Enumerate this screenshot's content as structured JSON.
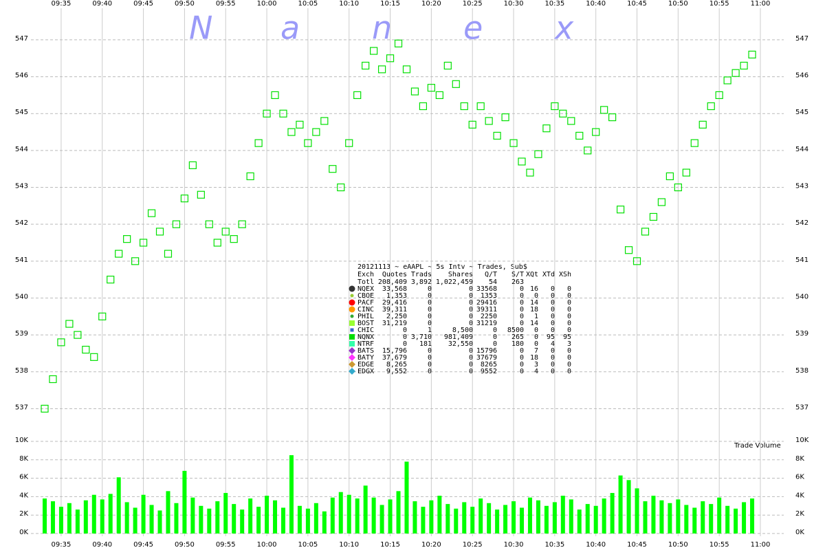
{
  "chart_data": [
    {
      "type": "scatter",
      "x": [
        "09:33",
        "09:34",
        "09:35",
        "09:36",
        "09:37",
        "09:38",
        "09:39",
        "09:40",
        "09:41",
        "09:42",
        "09:43",
        "09:44",
        "09:45",
        "09:46",
        "09:47",
        "09:48",
        "09:49",
        "09:50",
        "09:51",
        "09:52",
        "09:53",
        "09:54",
        "09:55",
        "09:56",
        "09:57",
        "09:58",
        "09:59",
        "10:00",
        "10:01",
        "10:02",
        "10:03",
        "10:04",
        "10:05",
        "10:06",
        "10:07",
        "10:08",
        "10:09",
        "10:10",
        "10:11",
        "10:12",
        "10:13",
        "10:14",
        "10:15",
        "10:16",
        "10:17",
        "10:18",
        "10:19",
        "10:20",
        "10:21",
        "10:22",
        "10:23",
        "10:24",
        "10:25",
        "10:26",
        "10:27",
        "10:28",
        "10:29",
        "10:30",
        "10:31",
        "10:32",
        "10:33",
        "10:34",
        "10:35",
        "10:36",
        "10:37",
        "10:38",
        "10:39",
        "10:40",
        "10:41",
        "10:42",
        "10:43",
        "10:44",
        "10:45",
        "10:46",
        "10:47",
        "10:48",
        "10:49",
        "10:50",
        "10:51",
        "10:52",
        "10:53",
        "10:54",
        "10:55",
        "10:56",
        "10:57",
        "10:58",
        "10:59"
      ],
      "values": [
        537.0,
        537.8,
        538.8,
        539.3,
        539.0,
        538.6,
        538.4,
        539.5,
        540.5,
        541.2,
        541.6,
        541.0,
        541.5,
        542.3,
        541.8,
        541.2,
        542.0,
        542.7,
        543.6,
        542.8,
        542.0,
        541.5,
        541.8,
        541.6,
        542.0,
        543.3,
        544.2,
        545.0,
        545.5,
        545.0,
        544.5,
        544.7,
        544.2,
        544.5,
        544.8,
        543.5,
        543.0,
        544.2,
        545.5,
        546.3,
        546.7,
        546.2,
        546.5,
        546.9,
        546.2,
        545.6,
        545.2,
        545.7,
        545.5,
        546.3,
        545.8,
        545.2,
        544.7,
        545.2,
        544.8,
        544.4,
        544.9,
        544.2,
        543.7,
        543.4,
        543.9,
        544.6,
        545.2,
        545.0,
        544.8,
        544.4,
        544.0,
        544.5,
        545.1,
        544.9,
        542.4,
        541.3,
        541.0,
        541.8,
        542.2,
        542.6,
        543.3,
        543.0,
        543.4,
        544.2,
        544.7,
        545.2,
        545.5,
        545.9,
        546.1,
        546.3,
        546.6
      ],
      "color": "#00e000",
      "xlim": [
        "09:33",
        "11:00"
      ],
      "xticks": [
        "09:35",
        "09:40",
        "09:45",
        "09:50",
        "09:55",
        "10:00",
        "10:05",
        "10:10",
        "10:15",
        "10:20",
        "10:25",
        "10:30",
        "10:35",
        "10:40",
        "10:45",
        "10:50",
        "10:55",
        "11:00"
      ],
      "ylim": [
        536.3,
        547.8
      ],
      "yticks": [
        537,
        538,
        539,
        540,
        541,
        542,
        543,
        544,
        545,
        546,
        547
      ],
      "grid": true
    },
    {
      "type": "bar",
      "title": "Trade Volume",
      "x": [
        "09:33",
        "09:34",
        "09:35",
        "09:36",
        "09:37",
        "09:38",
        "09:39",
        "09:40",
        "09:41",
        "09:42",
        "09:43",
        "09:44",
        "09:45",
        "09:46",
        "09:47",
        "09:48",
        "09:49",
        "09:50",
        "09:51",
        "09:52",
        "09:53",
        "09:54",
        "09:55",
        "09:56",
        "09:57",
        "09:58",
        "09:59",
        "10:00",
        "10:01",
        "10:02",
        "10:03",
        "10:04",
        "10:05",
        "10:06",
        "10:07",
        "10:08",
        "10:09",
        "10:10",
        "10:11",
        "10:12",
        "10:13",
        "10:14",
        "10:15",
        "10:16",
        "10:17",
        "10:18",
        "10:19",
        "10:20",
        "10:21",
        "10:22",
        "10:23",
        "10:24",
        "10:25",
        "10:26",
        "10:27",
        "10:28",
        "10:29",
        "10:30",
        "10:31",
        "10:32",
        "10:33",
        "10:34",
        "10:35",
        "10:36",
        "10:37",
        "10:38",
        "10:39",
        "10:40",
        "10:41",
        "10:42",
        "10:43",
        "10:44",
        "10:45",
        "10:46",
        "10:47",
        "10:48",
        "10:49",
        "10:50",
        "10:51",
        "10:52",
        "10:53",
        "10:54",
        "10:55",
        "10:56",
        "10:57",
        "10:58",
        "10:59"
      ],
      "values": [
        3800,
        3500,
        2900,
        3300,
        2600,
        3600,
        4200,
        3700,
        4300,
        6100,
        3400,
        2800,
        4200,
        3100,
        2500,
        4600,
        3300,
        6800,
        3900,
        3000,
        2700,
        3500,
        4400,
        3200,
        2600,
        3800,
        2900,
        4100,
        3600,
        2800,
        8500,
        3000,
        2700,
        3300,
        2400,
        3900,
        4500,
        4200,
        3800,
        5200,
        3900,
        3100,
        3700,
        4600,
        7800,
        3500,
        2900,
        3600,
        4100,
        3200,
        2700,
        3400,
        2900,
        3800,
        3300,
        2600,
        3100,
        3500,
        2800,
        3900,
        3600,
        3000,
        3400,
        4100,
        3700,
        2600,
        3200,
        3000,
        3800,
        4400,
        6300,
        5800,
        4900,
        3500,
        4100,
        3600,
        3300,
        3700,
        3100,
        2800,
        3500,
        3200,
        3900,
        3000,
        2700,
        3400,
        3800
      ],
      "color": "#00ff00",
      "xlim": [
        "09:33",
        "11:00"
      ],
      "xticks": [
        "09:35",
        "09:40",
        "09:45",
        "09:50",
        "09:55",
        "10:00",
        "10:05",
        "10:10",
        "10:15",
        "10:20",
        "10:25",
        "10:30",
        "10:35",
        "10:40",
        "10:45",
        "10:50",
        "10:55",
        "11:00"
      ],
      "ylim": [
        0,
        10000
      ],
      "yticks": [
        {
          "value": 0,
          "label": "0K"
        },
        {
          "value": 2000,
          "label": "2K"
        },
        {
          "value": 4000,
          "label": "4K"
        },
        {
          "value": 6000,
          "label": "6K"
        },
        {
          "value": 8000,
          "label": "8K"
        },
        {
          "value": 10000,
          "label": "10K"
        }
      ],
      "grid": true
    }
  ],
  "logo": [
    "N",
    "a",
    "n",
    "e",
    "x"
  ],
  "table": {
    "title": "20121113 ~ eAAPL ~ 5s Intv ~ Trades, Sub$",
    "header": [
      "Exch",
      "Quotes",
      "Trads",
      "Shares",
      "Q/T",
      "S/T",
      "XQt",
      "XTd",
      "XSh"
    ],
    "total": [
      "Totl",
      "208,409",
      "3,892",
      "1,022,459",
      "54",
      "263"
    ],
    "rows": [
      {
        "cells": [
          "NQEX",
          "33,568",
          "0",
          "0",
          "33568",
          "0",
          "16",
          "0",
          "0"
        ],
        "color": "#333333",
        "marker": "circle"
      },
      {
        "cells": [
          "CBOE",
          "1,353",
          "0",
          "0",
          "1353",
          "0",
          "0",
          "0",
          "0"
        ],
        "color": "#99cc33",
        "marker": "dot"
      },
      {
        "cells": [
          "PACF",
          "29,416",
          "0",
          "0",
          "29416",
          "0",
          "14",
          "0",
          "0"
        ],
        "color": "#ff0000",
        "marker": "circle"
      },
      {
        "cells": [
          "CINC",
          "39,311",
          "0",
          "0",
          "39311",
          "0",
          "18",
          "0",
          "0"
        ],
        "color": "#ff9900",
        "marker": "circle"
      },
      {
        "cells": [
          "PHIL",
          "2,250",
          "0",
          "0",
          "2250",
          "0",
          "1",
          "0",
          "0"
        ],
        "color": "#33aa33",
        "marker": "dot"
      },
      {
        "cells": [
          "BOST",
          "31,219",
          "0",
          "0",
          "31219",
          "0",
          "14",
          "0",
          "0"
        ],
        "color": "#99ff33",
        "marker": "square"
      },
      {
        "cells": [
          "CHIC",
          "0",
          "1",
          "8,500",
          "0",
          "8500",
          "0",
          "0",
          "0"
        ],
        "color": "#3366cc",
        "marker": "dot-square"
      },
      {
        "cells": [
          "NQNX",
          "0",
          "3,710",
          "981,409",
          "0",
          "265",
          "0",
          "95",
          "95"
        ],
        "color": "#00dd00",
        "marker": "square"
      },
      {
        "cells": [
          "NTRF",
          "0",
          "181",
          "32,550",
          "0",
          "180",
          "0",
          "4",
          "3"
        ],
        "color": "#33ffaa",
        "marker": "square"
      },
      {
        "cells": [
          "BATS",
          "15,796",
          "0",
          "0",
          "15796",
          "0",
          "7",
          "0",
          "0"
        ],
        "color": "#9933cc",
        "marker": "diamond"
      },
      {
        "cells": [
          "BATY",
          "37,679",
          "0",
          "0",
          "37679",
          "0",
          "18",
          "0",
          "0"
        ],
        "color": "#ff33ff",
        "marker": "diamond"
      },
      {
        "cells": [
          "EDGE",
          "8,265",
          "0",
          "0",
          "8265",
          "0",
          "3",
          "0",
          "0"
        ],
        "color": "#cc9933",
        "marker": "diamond"
      },
      {
        "cells": [
          "EDGX",
          "9,552",
          "0",
          "0",
          "9552",
          "0",
          "4",
          "0",
          "0"
        ],
        "color": "#33aacc",
        "marker": "diamond"
      }
    ]
  }
}
